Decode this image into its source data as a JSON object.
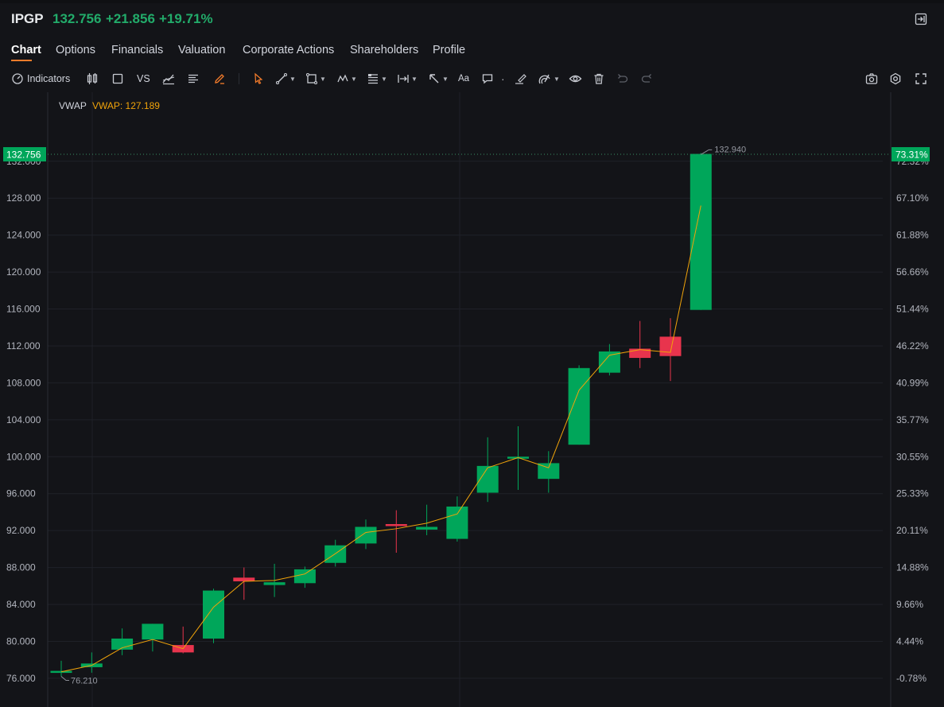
{
  "header": {
    "ticker": "IPGP",
    "price": "132.756",
    "change": "+21.856",
    "change_pct": "+19.71%",
    "up_color": "#22ab6a"
  },
  "tabs": [
    "Chart",
    "Options",
    "Financials",
    "Valuation",
    "Corporate Actions",
    "Shareholders",
    "Profile"
  ],
  "active_tab": "Chart",
  "toolbar": {
    "indicators_label": "Indicators",
    "vs_label": "VS",
    "text_tool_label": "Aa"
  },
  "legend": {
    "name": "VWAP",
    "value": "VWAP: 127.189"
  },
  "price_label": "132.756",
  "pct_label": "73.31%",
  "high_annotation": "132.940",
  "low_annotation": "76.210",
  "colors": {
    "up": "#00a65a",
    "down": "#e8344d",
    "vwap": "#f0a30a",
    "badge": "#00a65a",
    "accent": "#f57c2b"
  },
  "chart_data": {
    "type": "candlestick",
    "y_left_ticks": [
      "132.000",
      "128.000",
      "124.000",
      "120.000",
      "116.000",
      "112.000",
      "108.000",
      "104.000",
      "100.000",
      "96.000",
      "92.000",
      "88.000",
      "84.000",
      "80.000",
      "76.000"
    ],
    "y_right_ticks": [
      "72.32%",
      "67.10%",
      "61.88%",
      "56.66%",
      "51.44%",
      "46.22%",
      "40.99%",
      "35.77%",
      "30.55%",
      "25.33%",
      "20.11%",
      "14.88%",
      "9.66%",
      "4.44%",
      "-0.78%"
    ],
    "ylim": [
      75.3,
      135.6
    ],
    "candles": [
      {
        "o": 76.6,
        "h": 77.9,
        "l": 76.2,
        "c": 76.8
      },
      {
        "o": 77.2,
        "h": 78.8,
        "l": 76.6,
        "c": 77.6
      },
      {
        "o": 79.1,
        "h": 81.4,
        "l": 78.5,
        "c": 80.3
      },
      {
        "o": 80.2,
        "h": 81.9,
        "l": 78.9,
        "c": 81.9
      },
      {
        "o": 79.6,
        "h": 81.6,
        "l": 78.7,
        "c": 78.8
      },
      {
        "o": 80.3,
        "h": 85.7,
        "l": 79.8,
        "c": 85.5
      },
      {
        "o": 86.9,
        "h": 88.0,
        "l": 84.5,
        "c": 86.5
      },
      {
        "o": 86.1,
        "h": 88.4,
        "l": 84.8,
        "c": 86.4
      },
      {
        "o": 86.3,
        "h": 88.1,
        "l": 85.8,
        "c": 87.8
      },
      {
        "o": 88.5,
        "h": 91.0,
        "l": 88.1,
        "c": 90.4
      },
      {
        "o": 90.6,
        "h": 93.2,
        "l": 90.0,
        "c": 92.4
      },
      {
        "o": 92.7,
        "h": 94.2,
        "l": 89.6,
        "c": 92.6
      },
      {
        "o": 92.1,
        "h": 94.8,
        "l": 91.5,
        "c": 92.4
      },
      {
        "o": 91.1,
        "h": 95.7,
        "l": 90.8,
        "c": 94.6
      },
      {
        "o": 96.1,
        "h": 102.1,
        "l": 95.1,
        "c": 99.0
      },
      {
        "o": 99.9,
        "h": 103.3,
        "l": 96.4,
        "c": 100.0
      },
      {
        "o": 97.6,
        "h": 100.6,
        "l": 96.1,
        "c": 99.3
      },
      {
        "o": 101.3,
        "h": 109.9,
        "l": 101.3,
        "c": 109.6
      },
      {
        "o": 109.1,
        "h": 112.2,
        "l": 108.8,
        "c": 111.4
      },
      {
        "o": 111.7,
        "h": 114.7,
        "l": 109.6,
        "c": 110.7
      },
      {
        "o": 113.0,
        "h": 115.0,
        "l": 108.2,
        "c": 110.9
      },
      {
        "o": 115.9,
        "h": 132.9,
        "l": 115.9,
        "c": 132.8
      }
    ],
    "vwap": [
      76.7,
      77.4,
      79.3,
      80.2,
      79.2,
      83.7,
      86.5,
      86.6,
      87.3,
      89.5,
      91.8,
      92.2,
      92.8,
      93.8,
      98.8,
      99.9,
      98.8,
      107.2,
      111.0,
      111.6,
      111.3,
      127.2
    ]
  }
}
